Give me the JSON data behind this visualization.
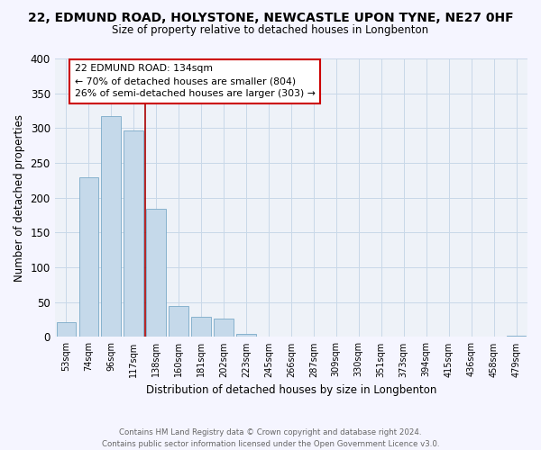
{
  "title": "22, EDMUND ROAD, HOLYSTONE, NEWCASTLE UPON TYNE, NE27 0HF",
  "subtitle": "Size of property relative to detached houses in Longbenton",
  "xlabel": "Distribution of detached houses by size in Longbenton",
  "ylabel": "Number of detached properties",
  "bar_labels": [
    "53sqm",
    "74sqm",
    "96sqm",
    "117sqm",
    "138sqm",
    "160sqm",
    "181sqm",
    "202sqm",
    "223sqm",
    "245sqm",
    "266sqm",
    "287sqm",
    "309sqm",
    "330sqm",
    "351sqm",
    "373sqm",
    "394sqm",
    "415sqm",
    "436sqm",
    "458sqm",
    "479sqm"
  ],
  "bar_values": [
    21,
    230,
    317,
    296,
    184,
    44,
    29,
    27,
    4,
    0,
    0,
    1,
    0,
    0,
    0,
    0,
    0,
    0,
    1,
    0,
    2
  ],
  "bar_color": "#c5d9ea",
  "bar_edge_color": "#7aaac8",
  "ylim": [
    0,
    400
  ],
  "yticks": [
    0,
    50,
    100,
    150,
    200,
    250,
    300,
    350,
    400
  ],
  "annotation_title": "22 EDMUND ROAD: 134sqm",
  "annotation_line1": "← 70% of detached houses are smaller (804)",
  "annotation_line2": "26% of semi-detached houses are larger (303) →",
  "annotation_box_color": "#ffffff",
  "annotation_box_edge": "#cc0000",
  "vline_color": "#aa0000",
  "footer_line1": "Contains HM Land Registry data © Crown copyright and database right 2024.",
  "footer_line2": "Contains public sector information licensed under the Open Government Licence v3.0.",
  "grid_color": "#c8d8e8",
  "bg_color": "#eef2f8",
  "fig_bg": "#f5f5ff"
}
